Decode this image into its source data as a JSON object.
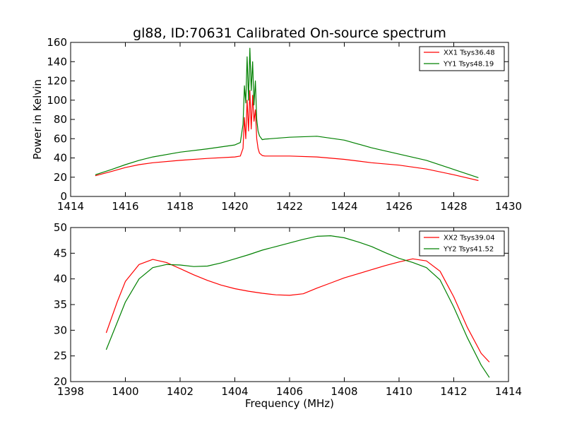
{
  "figure": {
    "title": "gl88, ID:70631 Calibrated On-source spectrum",
    "background": "#ffffff"
  },
  "chart_data": [
    {
      "type": "line",
      "title": "gl88, ID:70631 Calibrated On-source spectrum",
      "xlabel": "",
      "ylabel": "Power in Kelvin",
      "xlim": [
        1414,
        1430
      ],
      "ylim": [
        0,
        160
      ],
      "xticks": [
        1414,
        1416,
        1418,
        1420,
        1422,
        1424,
        1426,
        1428,
        1430
      ],
      "yticks": [
        0,
        20,
        40,
        60,
        80,
        100,
        120,
        140,
        160
      ],
      "grid": false,
      "legend_position": "top-right",
      "series": [
        {
          "name": "XX1 Tsys36.48",
          "color": "#ff0000",
          "x": [
            1414.9,
            1415.5,
            1416.0,
            1416.5,
            1417.0,
            1418.0,
            1419.0,
            1420.0,
            1420.2,
            1420.3,
            1420.35,
            1420.4,
            1420.45,
            1420.5,
            1420.55,
            1420.6,
            1420.65,
            1420.7,
            1420.75,
            1420.8,
            1420.85,
            1420.9,
            1421.0,
            1421.1,
            1422.0,
            1423.0,
            1424.0,
            1425.0,
            1426.0,
            1427.0,
            1428.0,
            1428.9
          ],
          "y": [
            21.5,
            26,
            30,
            33,
            35,
            37.5,
            39.5,
            41,
            42,
            50,
            82,
            60,
            100,
            68,
            110,
            70,
            105,
            78,
            90,
            60,
            50,
            45,
            42.5,
            42,
            42,
            41,
            38.5,
            35,
            32.5,
            28.5,
            22.5,
            16.5
          ]
        },
        {
          "name": "YY1 Tsys48.19",
          "color": "#008000",
          "x": [
            1414.9,
            1415.5,
            1416.0,
            1416.5,
            1417.0,
            1418.0,
            1419.0,
            1420.0,
            1420.2,
            1420.3,
            1420.35,
            1420.4,
            1420.45,
            1420.5,
            1420.55,
            1420.6,
            1420.65,
            1420.7,
            1420.75,
            1420.8,
            1420.85,
            1420.9,
            1421.0,
            1421.1,
            1422.0,
            1423.0,
            1424.0,
            1425.0,
            1426.0,
            1427.0,
            1428.0,
            1428.9
          ],
          "y": [
            22.5,
            28,
            33,
            37.5,
            41,
            46,
            49.5,
            53.5,
            56,
            75,
            115,
            97,
            145,
            100,
            154,
            110,
            140,
            95,
            120,
            80,
            68,
            63,
            59,
            59.5,
            61.5,
            62.5,
            58.5,
            50.5,
            44,
            37.5,
            28,
            19.5
          ]
        }
      ]
    },
    {
      "type": "line",
      "title": "",
      "xlabel": "Frequency (MHz)",
      "ylabel": "",
      "xlim": [
        1398,
        1414
      ],
      "ylim": [
        20,
        50
      ],
      "xticks": [
        1398,
        1400,
        1402,
        1404,
        1406,
        1408,
        1410,
        1412,
        1414
      ],
      "yticks": [
        20,
        25,
        30,
        35,
        40,
        45,
        50
      ],
      "grid": false,
      "legend_position": "top-right",
      "series": [
        {
          "name": "XX2 Tsys39.04",
          "color": "#ff0000",
          "x": [
            1399.3,
            1399.7,
            1400.0,
            1400.5,
            1401.0,
            1401.5,
            1402.0,
            1402.5,
            1403.0,
            1403.5,
            1404.0,
            1404.5,
            1405.0,
            1405.5,
            1406.0,
            1406.5,
            1407.0,
            1407.5,
            1408.0,
            1408.5,
            1409.0,
            1409.5,
            1410.0,
            1410.5,
            1411.0,
            1411.5,
            1412.0,
            1412.5,
            1413.0,
            1413.3
          ],
          "y": [
            29.5,
            35.5,
            39.5,
            42.8,
            43.8,
            43.2,
            42.0,
            40.8,
            39.7,
            38.8,
            38.1,
            37.6,
            37.2,
            36.9,
            36.8,
            37.1,
            38.2,
            39.2,
            40.2,
            41.0,
            41.8,
            42.6,
            43.3,
            43.9,
            43.5,
            41.5,
            36.5,
            30.5,
            25.5,
            23.8
          ]
        },
        {
          "name": "YY2 Tsys41.52",
          "color": "#008000",
          "x": [
            1399.3,
            1399.7,
            1400.0,
            1400.5,
            1401.0,
            1401.5,
            1402.0,
            1402.5,
            1403.0,
            1403.5,
            1404.0,
            1404.5,
            1405.0,
            1405.5,
            1406.0,
            1406.5,
            1407.0,
            1407.5,
            1408.0,
            1408.5,
            1409.0,
            1409.5,
            1410.0,
            1410.5,
            1411.0,
            1411.5,
            1412.0,
            1412.5,
            1413.0,
            1413.3
          ],
          "y": [
            26.2,
            31.5,
            35.5,
            40.0,
            42.2,
            42.8,
            42.7,
            42.4,
            42.5,
            43.1,
            43.9,
            44.7,
            45.6,
            46.3,
            47.0,
            47.7,
            48.3,
            48.4,
            48.0,
            47.2,
            46.3,
            45.1,
            44.0,
            43.2,
            42.2,
            39.8,
            34.5,
            28.5,
            23.2,
            20.8
          ]
        }
      ]
    }
  ]
}
